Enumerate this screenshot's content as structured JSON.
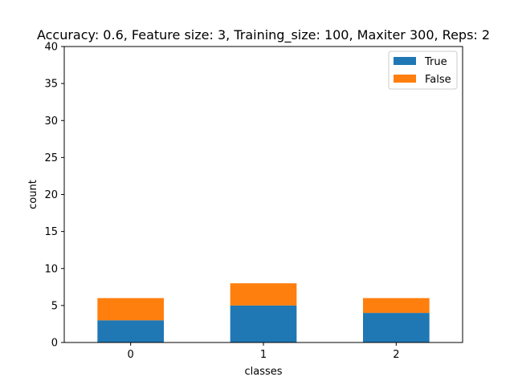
{
  "chart_data": {
    "type": "bar",
    "stacked": true,
    "title": "Accuracy: 0.6, Feature size: 3, Training_size: 100, Maxiter 300, Reps: 2",
    "xlabel": "classes",
    "ylabel": "count",
    "categories": [
      "0",
      "1",
      "2"
    ],
    "series": [
      {
        "name": "True",
        "values": [
          3,
          5,
          4
        ],
        "color": "#1f77b4"
      },
      {
        "name": "False",
        "values": [
          3,
          3,
          2
        ],
        "color": "#ff7f0e"
      }
    ],
    "ylim": [
      0,
      40
    ],
    "yticks": [
      0,
      5,
      10,
      15,
      20,
      25,
      30,
      35,
      40
    ],
    "grid": false,
    "legend_position": "top-right"
  }
}
